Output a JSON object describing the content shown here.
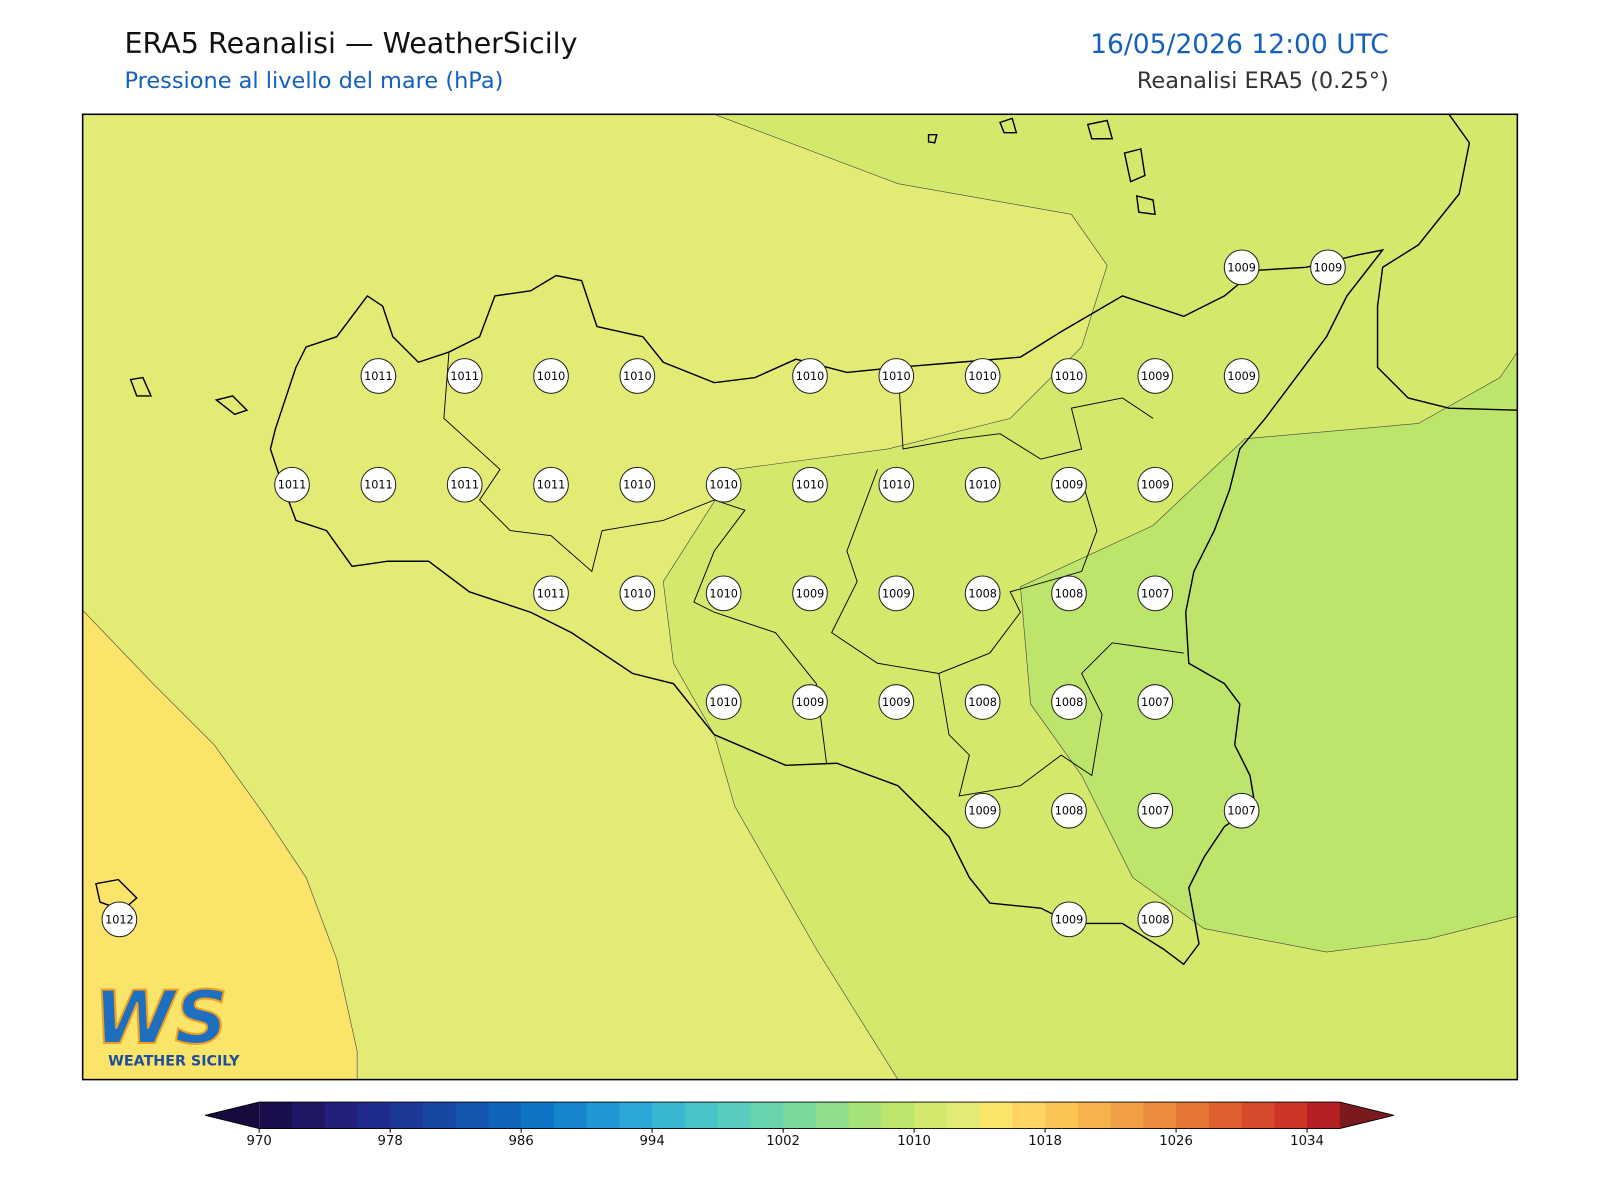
{
  "header": {
    "title": "ERA5 Reanalisi — WeatherSicily",
    "subtitle": "Pressione al livello del mare (hPa)",
    "date": "16/05/2026 12:00 UTC",
    "source": "Reanalisi ERA5 (0.25°)"
  },
  "logo": {
    "mark": "WS",
    "text": "WEATHER SICILY"
  },
  "map": {
    "pressure_grid": {
      "rows": [
        [
          null,
          null,
          null,
          null,
          null,
          null,
          null,
          null,
          null,
          null,
          null,
          null,
          null,
          1009,
          1009
        ],
        [
          null,
          null,
          null,
          1011,
          1011,
          1010,
          1010,
          null,
          1010,
          1010,
          1010,
          1010,
          1009,
          1009,
          null
        ],
        [
          null,
          null,
          1011,
          1011,
          1011,
          1011,
          1010,
          1010,
          1010,
          1010,
          1010,
          1009,
          1009,
          null,
          null
        ],
        [
          null,
          null,
          null,
          null,
          null,
          1011,
          1010,
          1010,
          1009,
          1009,
          1008,
          1008,
          1007,
          null,
          null
        ],
        [
          null,
          null,
          null,
          null,
          null,
          null,
          null,
          1010,
          1009,
          1009,
          1008,
          1008,
          1007,
          null,
          null
        ],
        [
          null,
          null,
          null,
          null,
          null,
          null,
          null,
          null,
          null,
          null,
          1009,
          1008,
          1007,
          1007,
          null
        ],
        [
          1012,
          null,
          null,
          null,
          null,
          null,
          null,
          null,
          null,
          null,
          null,
          1009,
          1008,
          null,
          null
        ]
      ]
    }
  },
  "colorbar": {
    "lim": [
      970,
      1036
    ],
    "ticks": [
      970,
      978,
      986,
      994,
      1002,
      1010,
      1018,
      1026,
      1034
    ],
    "colors": [
      "#1b0e4d",
      "#1f1763",
      "#22207a",
      "#1f2b8a",
      "#1c3896",
      "#1846a3",
      "#1455b0",
      "#1064bc",
      "#0d74c6",
      "#1685cd",
      "#2096d3",
      "#2ba7d6",
      "#39b7d2",
      "#48c3ca",
      "#58ccbd",
      "#69d3ae",
      "#7cd99d",
      "#90dd8b",
      "#a5e27a",
      "#bde56b",
      "#d4e86b",
      "#e3eb75",
      "#fbe46a",
      "#fdd461",
      "#fbc556",
      "#f6b24d",
      "#f19f45",
      "#ec8b3d",
      "#e57536",
      "#df5f30",
      "#d64a2c",
      "#cc3629",
      "#b52024"
    ],
    "extend_colors": [
      "#160a3e",
      "#7a1a1e"
    ]
  }
}
